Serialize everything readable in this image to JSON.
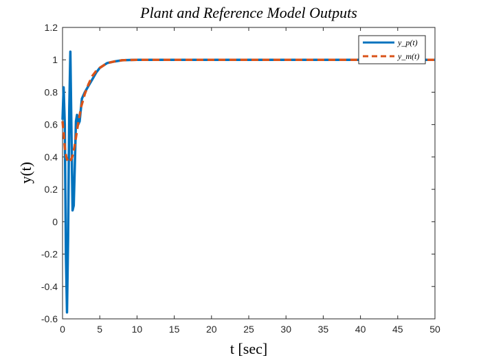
{
  "chart_data": {
    "type": "line",
    "title": "Plant and Reference Model Outputs",
    "xlabel": "t [sec]",
    "ylabel": "y(t)",
    "xlim": [
      0,
      50
    ],
    "ylim": [
      -0.6,
      1.2
    ],
    "xticks": [
      0,
      5,
      10,
      15,
      20,
      25,
      30,
      35,
      40,
      45,
      50
    ],
    "yticks": [
      -0.6,
      -0.4,
      -0.2,
      0,
      0.2,
      0.4,
      0.6,
      0.8,
      1,
      1.2
    ],
    "grid": false,
    "legend_position": "top-right",
    "series": [
      {
        "name": "y_p(t)",
        "color": "#0072BD",
        "style": "solid",
        "x": [
          0,
          0.15,
          0.3,
          0.45,
          0.6,
          0.75,
          0.9,
          1.05,
          1.2,
          1.35,
          1.5,
          1.65,
          1.8,
          1.95,
          2.1,
          2.3,
          2.6,
          3,
          3.5,
          4,
          4.5,
          5,
          6,
          7,
          8,
          9,
          10,
          12,
          15,
          20,
          30,
          40,
          50
        ],
        "y": [
          0.63,
          0.83,
          0.6,
          -0.2,
          -0.56,
          -0.1,
          0.7,
          1.05,
          0.55,
          0.07,
          0.1,
          0.35,
          0.62,
          0.66,
          0.6,
          0.62,
          0.76,
          0.8,
          0.84,
          0.88,
          0.92,
          0.95,
          0.98,
          0.99,
          0.997,
          0.999,
          1,
          1,
          1,
          1,
          1,
          1,
          1
        ]
      },
      {
        "name": "y_m(t)",
        "color": "#D95319",
        "style": "dashed",
        "x": [
          0,
          0.15,
          0.3,
          0.5,
          0.75,
          1,
          1.3,
          1.6,
          2,
          2.5,
          3,
          3.5,
          4,
          4.5,
          5,
          6,
          7,
          8,
          9,
          10,
          12,
          15,
          20,
          30,
          40,
          50
        ],
        "y": [
          0.62,
          0.55,
          0.46,
          0.4,
          0.37,
          0.37,
          0.4,
          0.46,
          0.58,
          0.71,
          0.79,
          0.85,
          0.9,
          0.93,
          0.95,
          0.98,
          0.99,
          0.997,
          0.999,
          1,
          1,
          1,
          1,
          1,
          1,
          1
        ]
      }
    ]
  }
}
